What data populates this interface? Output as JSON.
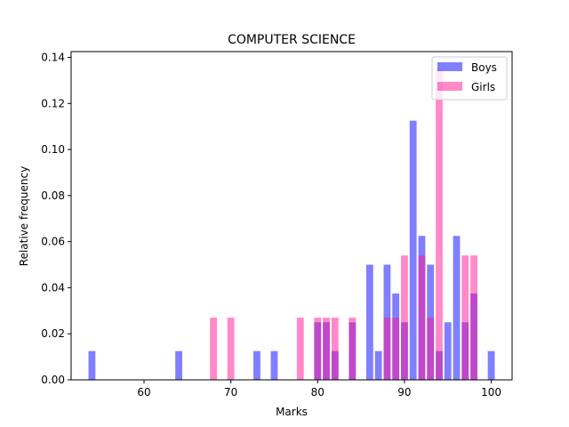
{
  "chart_data": {
    "type": "bar",
    "title": "COMPUTER SCIENCE",
    "xlabel": "Marks",
    "ylabel": "Relative frequency",
    "xlim": [
      51.6,
      102.4
    ],
    "ylim": [
      0,
      0.1425
    ],
    "xticks": [
      60,
      70,
      80,
      90,
      100
    ],
    "yticks": [
      "0.00",
      "0.02",
      "0.04",
      "0.06",
      "0.08",
      "0.10",
      "0.12",
      "0.14"
    ],
    "bar_width": 0.8,
    "legend_position": "top-right",
    "series": [
      {
        "name": "Boys",
        "color": "#0000ff",
        "opacity": 0.5,
        "x": [
          54,
          64,
          73,
          75,
          80,
          81,
          82,
          84,
          86,
          87,
          88,
          89,
          90,
          91,
          92,
          93,
          94,
          95,
          96,
          97,
          98,
          100
        ],
        "values": [
          0.0125,
          0.0125,
          0.0125,
          0.0125,
          0.025,
          0.025,
          0.0125,
          0.025,
          0.05,
          0.0125,
          0.05,
          0.0375,
          0.025,
          0.1125,
          0.0625,
          0.05,
          0.0125,
          0.025,
          0.0625,
          0.025,
          0.0375,
          0.0125
        ]
      },
      {
        "name": "Girls",
        "color": "#ff1493",
        "opacity": 0.5,
        "x": [
          68,
          70,
          78,
          80,
          81,
          82,
          84,
          88,
          89,
          90,
          92,
          93,
          94,
          97,
          98
        ],
        "values": [
          0.027,
          0.027,
          0.027,
          0.027,
          0.027,
          0.027,
          0.027,
          0.027,
          0.027,
          0.054,
          0.054,
          0.027,
          0.135,
          0.054,
          0.054
        ]
      }
    ]
  }
}
